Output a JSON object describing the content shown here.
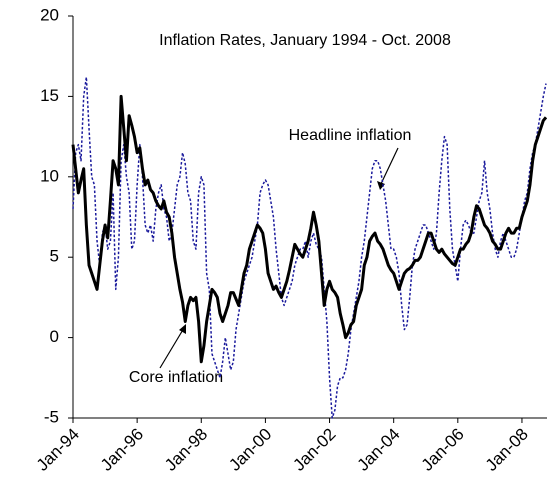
{
  "chart_data": {
    "type": "line",
    "title": "Inflation Rates, January 1994 - Oct. 2008",
    "annotations": [
      "Headline inflation",
      "Core inflation"
    ],
    "categories": [
      "Jan-94",
      null,
      null,
      null,
      null,
      null,
      null,
      null,
      null,
      null,
      null,
      null,
      null,
      null,
      null,
      null,
      null,
      null,
      null,
      null,
      null,
      null,
      null,
      null,
      "Jan-96",
      null,
      null,
      null,
      null,
      null,
      null,
      null,
      null,
      null,
      null,
      null,
      null,
      null,
      null,
      null,
      null,
      null,
      null,
      null,
      null,
      null,
      null,
      null,
      "Jan-98",
      null,
      null,
      null,
      null,
      null,
      null,
      null,
      null,
      null,
      null,
      null,
      null,
      null,
      null,
      null,
      null,
      null,
      null,
      null,
      null,
      null,
      null,
      null,
      "Jan-00",
      null,
      null,
      null,
      null,
      null,
      null,
      null,
      null,
      null,
      null,
      null,
      null,
      null,
      null,
      null,
      null,
      null,
      null,
      null,
      null,
      null,
      null,
      null,
      "Jan-02",
      null,
      null,
      null,
      null,
      null,
      null,
      null,
      null,
      null,
      null,
      null,
      null,
      null,
      null,
      null,
      null,
      null,
      null,
      null,
      null,
      null,
      null,
      null,
      "Jan-04",
      null,
      null,
      null,
      null,
      null,
      null,
      null,
      null,
      null,
      null,
      null,
      null,
      null,
      null,
      null,
      null,
      null,
      null,
      null,
      null,
      null,
      null,
      null,
      "Jan-06",
      null,
      null,
      null,
      null,
      null,
      null,
      null,
      null,
      null,
      null,
      null,
      null,
      null,
      null,
      null,
      null,
      null,
      null,
      null,
      null,
      null,
      null,
      null,
      "Jan-08",
      null,
      null,
      null,
      null,
      null,
      null,
      null,
      null,
      null
    ],
    "series": [
      {
        "name": "Core inflation",
        "color": "#000000",
        "style": "solid",
        "values": [
          12.0,
          10.5,
          9.0,
          9.8,
          10.5,
          7.0,
          4.5,
          4.0,
          3.5,
          3.0,
          4.5,
          6.0,
          7.0,
          6.2,
          8.5,
          11.0,
          10.5,
          9.5,
          15.0,
          13.0,
          11.0,
          13.8,
          13.2,
          12.5,
          11.5,
          11.8,
          10.5,
          9.5,
          9.8,
          9.2,
          9.0,
          8.5,
          8.2,
          8.0,
          8.5,
          7.8,
          7.5,
          6.5,
          5.0,
          4.0,
          3.0,
          2.2,
          1.0,
          2.0,
          2.5,
          2.3,
          2.5,
          1.0,
          -1.5,
          -0.5,
          1.0,
          2.0,
          3.0,
          2.8,
          2.5,
          1.5,
          1.0,
          1.5,
          2.0,
          2.8,
          2.8,
          2.4,
          2.0,
          3.0,
          4.0,
          4.5,
          5.5,
          6.0,
          6.5,
          7.0,
          6.8,
          6.5,
          5.5,
          4.0,
          3.5,
          3.0,
          3.2,
          2.8,
          2.5,
          3.0,
          3.5,
          4.2,
          5.0,
          5.8,
          5.5,
          5.2,
          5.0,
          5.5,
          6.0,
          6.8,
          7.8,
          7.0,
          6.0,
          4.0,
          2.0,
          3.0,
          3.5,
          3.0,
          2.8,
          2.5,
          1.5,
          0.8,
          0.0,
          0.3,
          0.8,
          1.0,
          2.0,
          2.5,
          3.0,
          4.5,
          5.0,
          6.0,
          6.3,
          6.5,
          6.0,
          5.8,
          5.5,
          5.0,
          4.5,
          4.2,
          4.0,
          3.5,
          3.0,
          3.5,
          4.0,
          4.2,
          4.3,
          4.5,
          4.8,
          4.8,
          5.0,
          5.5,
          6.0,
          6.5,
          6.5,
          6.0,
          5.5,
          5.3,
          5.5,
          5.2,
          5.0,
          4.8,
          4.6,
          4.5,
          5.0,
          5.5,
          5.5,
          5.8,
          6.0,
          6.5,
          7.5,
          8.2,
          8.0,
          7.5,
          7.0,
          6.8,
          6.5,
          6.0,
          5.8,
          5.5,
          5.5,
          6.0,
          6.5,
          6.8,
          6.5,
          6.5,
          6.8,
          6.8,
          7.5,
          8.0,
          8.5,
          9.5,
          11.0,
          12.0,
          12.5,
          13.0,
          13.5,
          13.7
        ]
      },
      {
        "name": "Headline inflation",
        "color": "#1a1a9c",
        "style": "dotted",
        "values": [
          8.0,
          11.5,
          12.0,
          11.0,
          15.0,
          16.2,
          13.0,
          10.0,
          9.5,
          6.0,
          4.5,
          6.5,
          7.0,
          5.5,
          6.0,
          9.0,
          3.0,
          5.0,
          11.0,
          12.0,
          10.0,
          9.0,
          5.5,
          6.0,
          9.5,
          12.0,
          10.0,
          7.0,
          6.5,
          7.0,
          6.0,
          8.0,
          9.0,
          9.5,
          8.0,
          7.5,
          6.0,
          6.5,
          8.0,
          9.5,
          10.0,
          11.5,
          10.8,
          9.0,
          8.5,
          6.0,
          5.5,
          9.0,
          10.0,
          9.5,
          4.0,
          3.0,
          -1.0,
          -1.5,
          -2.0,
          -2.5,
          -1.5,
          0.0,
          -1.0,
          -2.0,
          -1.5,
          0.5,
          1.5,
          2.5,
          3.5,
          4.0,
          4.5,
          5.0,
          6.0,
          7.0,
          9.0,
          9.5,
          9.8,
          9.5,
          8.5,
          7.5,
          5.5,
          4.0,
          2.5,
          2.0,
          2.5,
          3.0,
          3.5,
          4.5,
          5.0,
          5.5,
          5.5,
          6.0,
          5.0,
          6.0,
          6.5,
          5.8,
          5.5,
          5.0,
          3.0,
          1.0,
          -2.5,
          -5.0,
          -4.5,
          -3.0,
          -2.5,
          -2.5,
          -2.0,
          -1.0,
          0.5,
          1.5,
          2.5,
          3.5,
          5.0,
          6.0,
          7.5,
          9.0,
          10.5,
          11.0,
          11.0,
          10.5,
          9.5,
          8.5,
          7.0,
          5.5,
          5.5,
          5.0,
          4.0,
          2.0,
          0.5,
          0.8,
          2.5,
          4.5,
          5.5,
          6.0,
          6.5,
          7.0,
          7.0,
          6.5,
          6.0,
          5.5,
          6.5,
          9.0,
          11.0,
          12.5,
          12.0,
          8.0,
          5.5,
          4.5,
          3.5,
          5.5,
          7.0,
          7.3,
          7.0,
          6.5,
          6.5,
          7.5,
          8.5,
          9.0,
          11.0,
          9.0,
          8.0,
          6.5,
          5.5,
          5.0,
          6.0,
          6.5,
          6.0,
          5.5,
          5.0,
          5.0,
          5.5,
          6.5,
          7.5,
          8.5,
          9.0,
          10.5,
          11.5,
          12.0,
          13.0,
          14.0,
          15.0,
          15.8
        ]
      }
    ],
    "ylim": [
      -5,
      20
    ],
    "yticks": [
      -5,
      0,
      5,
      10,
      15,
      20
    ],
    "grid": false
  }
}
